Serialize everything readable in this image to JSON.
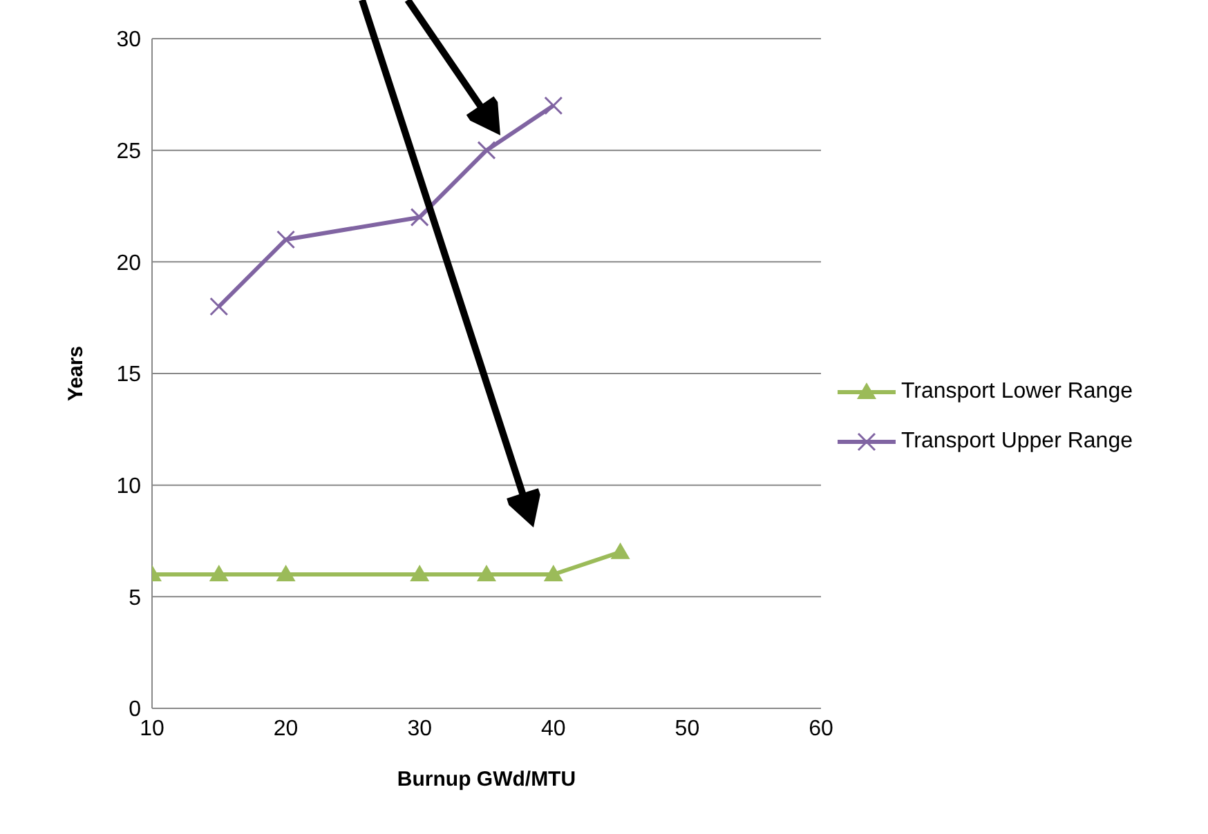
{
  "chart_data": {
    "type": "line",
    "xlabel": "Burnup GWd/MTU",
    "ylabel": "Years",
    "xlim": [
      10,
      60
    ],
    "xticks": [
      10,
      20,
      30,
      40,
      50,
      60
    ],
    "ylim": [
      0,
      30
    ],
    "yticks": [
      0,
      5,
      10,
      15,
      20,
      25,
      30
    ],
    "grid": "y",
    "legend": "right",
    "series": [
      {
        "name": "Transport Lower Range",
        "color": "#9bbb59",
        "marker": "triangle",
        "x": [
          10,
          15,
          20,
          30,
          35,
          40,
          45
        ],
        "values": [
          6,
          6,
          6,
          6,
          6,
          6,
          7
        ]
      },
      {
        "name": "Transport Upper Range",
        "color": "#8064a2",
        "marker": "cross",
        "x": [
          15,
          20,
          30,
          35,
          40
        ],
        "values": [
          18,
          21,
          22,
          25,
          27
        ]
      }
    ]
  }
}
